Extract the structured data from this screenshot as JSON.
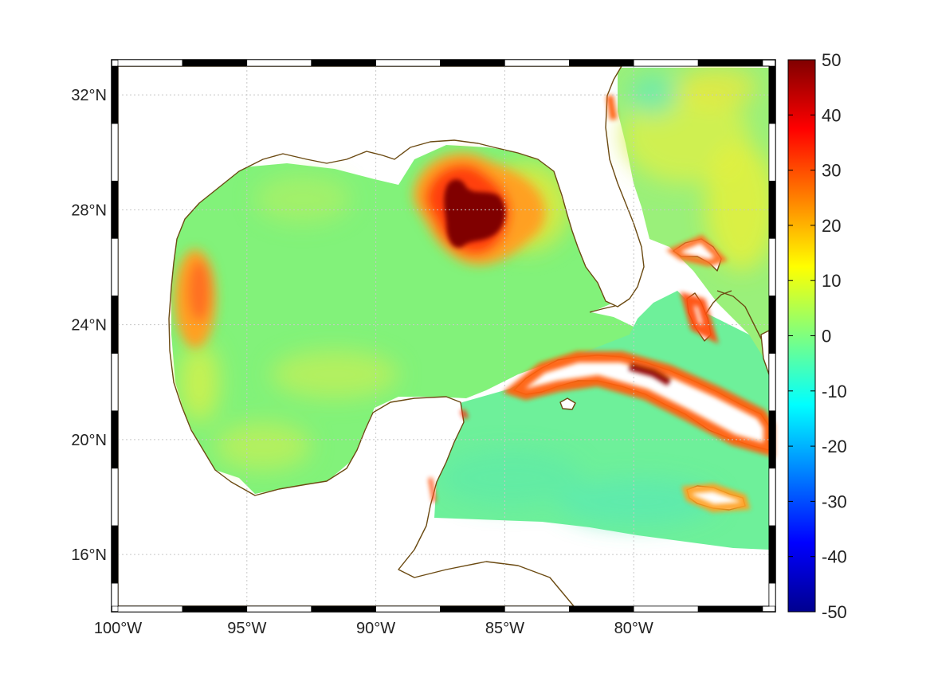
{
  "map": {
    "lon_range": [
      -100,
      -75
    ],
    "lat_range": [
      14.2,
      33
    ],
    "lat_labels": [
      {
        "value": 32,
        "label": "32°N"
      },
      {
        "value": 28,
        "label": "28°N"
      },
      {
        "value": 24,
        "label": "24°N"
      },
      {
        "value": 20,
        "label": "20°N"
      },
      {
        "value": 16,
        "label": "16°N"
      }
    ],
    "lon_labels": [
      {
        "value": -100,
        "label": "100°W"
      },
      {
        "value": -95,
        "label": "95°W"
      },
      {
        "value": -90,
        "label": "90°W"
      },
      {
        "value": -85,
        "label": "85°W"
      },
      {
        "value": -80,
        "label": "80°W"
      }
    ],
    "colors": {
      "land": "#ffffff",
      "coastline": "#6b4a12",
      "grid": "#c8c8c8"
    }
  },
  "colorbar": {
    "min": -50,
    "max": 50,
    "colormap": "jet",
    "ticks": [
      {
        "value": 50,
        "label": "50"
      },
      {
        "value": 40,
        "label": "40"
      },
      {
        "value": 30,
        "label": "30"
      },
      {
        "value": 20,
        "label": "20"
      },
      {
        "value": 10,
        "label": "10"
      },
      {
        "value": 0,
        "label": "0"
      },
      {
        "value": -10,
        "label": "-10"
      },
      {
        "value": -20,
        "label": "-20"
      },
      {
        "value": -30,
        "label": "-30"
      },
      {
        "value": -40,
        "label": "-40"
      },
      {
        "value": -50,
        "label": "-50"
      }
    ]
  },
  "field_features": [
    {
      "name": "loop-current-eddy",
      "lon": -86.6,
      "lat": 27.8,
      "value": 50
    },
    {
      "name": "western-gulf-eddy",
      "lon": -97.2,
      "lat": 25.2,
      "value": 27
    },
    {
      "name": "cuba-coast",
      "lon": -80,
      "lat": 22,
      "value": 35
    },
    {
      "name": "bahamas",
      "lon": -78,
      "lat": 24.5,
      "value": 35
    },
    {
      "name": "jamaica",
      "lon": -77.3,
      "lat": 18.1,
      "value": 30
    },
    {
      "name": "open-gulf",
      "lon": -92,
      "lat": 24,
      "value": 3
    }
  ]
}
